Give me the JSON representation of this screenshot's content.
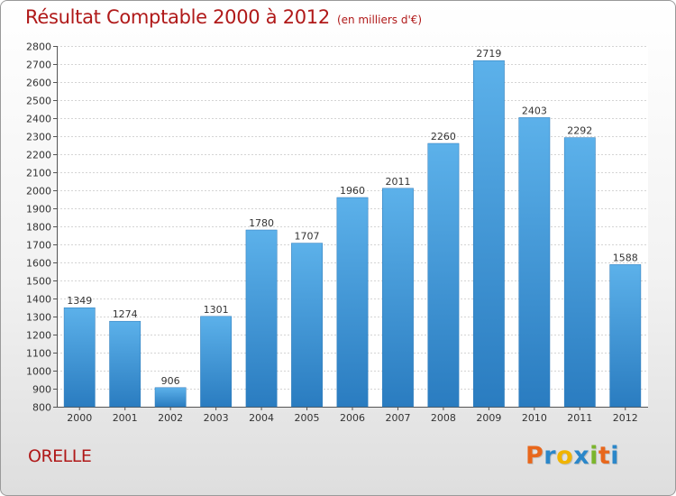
{
  "chart_data": {
    "type": "bar",
    "title": "Résultat Comptable 2000 à 2012",
    "subtitle": "(en milliers d'€)",
    "categories": [
      "2000",
      "2001",
      "2002",
      "2003",
      "2004",
      "2005",
      "2006",
      "2007",
      "2008",
      "2009",
      "2010",
      "2011",
      "2012"
    ],
    "values": [
      1349,
      1274,
      906,
      1301,
      1780,
      1707,
      1960,
      2011,
      2260,
      2719,
      2403,
      2292,
      1588
    ],
    "ylim": [
      800,
      2800
    ],
    "ytick_step": 100,
    "grid": true,
    "xlabel": "",
    "ylabel": "",
    "bar_color": "#3a8ed4"
  },
  "footer": {
    "commune": "ORELLE",
    "logo_letters": [
      "P",
      "r",
      "o",
      "x",
      "i",
      "t",
      "i"
    ],
    "logo_colors": [
      "#e8671c",
      "#2b87c9",
      "#f0b400",
      "#2b87c9",
      "#7bb52c",
      "#e8671c",
      "#2b87c9"
    ]
  }
}
